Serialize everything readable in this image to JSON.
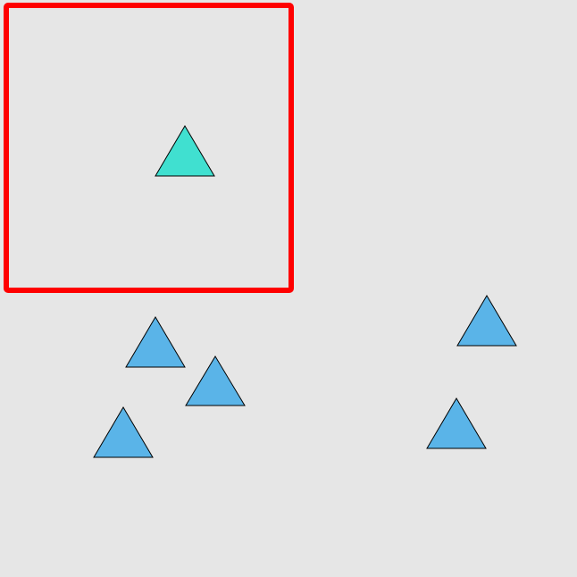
{
  "colors": {
    "background": "#e6e6e6",
    "selection_box": "#ff0000",
    "highlighted_triangle": "#40e0d0",
    "triangle": "#5ab4e8",
    "outline": "#000000"
  },
  "selection": {
    "icon": "selection-box"
  },
  "shapes": [
    {
      "name": "highlighted-triangle",
      "icon": "triangle-icon",
      "color_key": "highlighted_triangle",
      "in_selection": true
    },
    {
      "name": "triangle-1",
      "icon": "triangle-icon",
      "color_key": "triangle",
      "in_selection": false
    },
    {
      "name": "triangle-2",
      "icon": "triangle-icon",
      "color_key": "triangle",
      "in_selection": false
    },
    {
      "name": "triangle-3",
      "icon": "triangle-icon",
      "color_key": "triangle",
      "in_selection": false
    },
    {
      "name": "triangle-4",
      "icon": "triangle-icon",
      "color_key": "triangle",
      "in_selection": false
    },
    {
      "name": "triangle-5",
      "icon": "triangle-icon",
      "color_key": "triangle",
      "in_selection": false
    }
  ]
}
